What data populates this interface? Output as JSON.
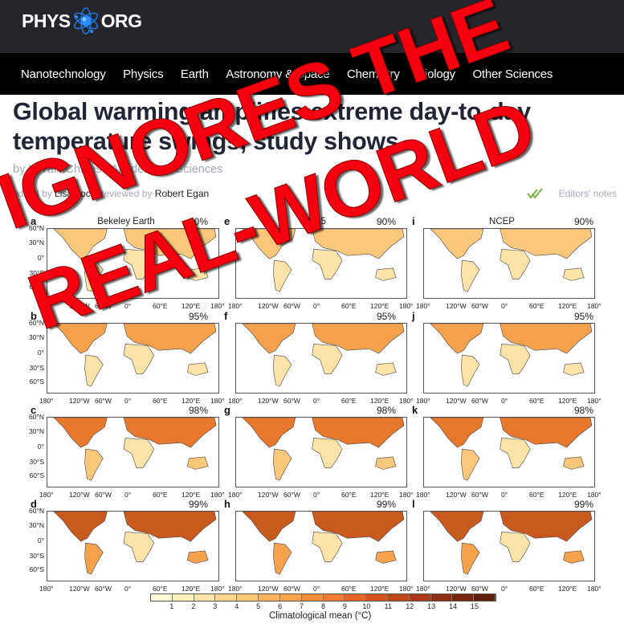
{
  "header": {
    "logo_left": "PHYS",
    "logo_right": "ORG",
    "logo_icon": "atom-icon"
  },
  "nav": {
    "items": [
      {
        "label": "Nanotechnology"
      },
      {
        "label": "Physics"
      },
      {
        "label": "Earth"
      },
      {
        "label": "Astronomy & Space"
      },
      {
        "label": "Chemistry"
      },
      {
        "label": "Biology"
      },
      {
        "label": "Other Sciences"
      }
    ]
  },
  "article": {
    "title": "Global warming amplifies extreme day-to-day temperature swings, study shows",
    "byline": "by Li Yali, Chinese Academy of Sciences",
    "edited_prefix": "edited by ",
    "editor": "Lisa Lock",
    "reviewed_prefix": ", reviewed by ",
    "reviewer": "Robert Egan",
    "editors_notes": "Editors' notes",
    "editors_notes_icon": "double-check-icon"
  },
  "overlay": {
    "line1": "IGNORES THE",
    "line2": "REAL-WORLD",
    "color": "#f5000f"
  },
  "figure": {
    "lat_labels": [
      "60°N",
      "30°N",
      "0°",
      "30°S",
      "60°S"
    ],
    "lon_labels": [
      "180°",
      "120°W",
      "60°W",
      "0°",
      "60°E",
      "120°E",
      "180°"
    ],
    "columns": [
      {
        "source": "Bekeley Earth"
      },
      {
        "source": "ERA5"
      },
      {
        "source": "NCEP"
      }
    ],
    "panels": [
      {
        "letter": "a",
        "pct": "90%",
        "source": "Bekeley Earth"
      },
      {
        "letter": "e",
        "pct": "90%",
        "source": "ERA5"
      },
      {
        "letter": "i",
        "pct": "90%",
        "source": "NCEP"
      },
      {
        "letter": "b",
        "pct": "95%"
      },
      {
        "letter": "f",
        "pct": "95%"
      },
      {
        "letter": "j",
        "pct": "95%"
      },
      {
        "letter": "c",
        "pct": "98%"
      },
      {
        "letter": "g",
        "pct": "98%"
      },
      {
        "letter": "k",
        "pct": "98%"
      },
      {
        "letter": "d",
        "pct": "99%"
      },
      {
        "letter": "h",
        "pct": "99%"
      },
      {
        "letter": "l",
        "pct": "99%"
      }
    ],
    "colorbar": {
      "ticks": [
        "1",
        "2",
        "3",
        "4",
        "5",
        "6",
        "7",
        "8",
        "9",
        "10",
        "11",
        "12",
        "13",
        "14",
        "15"
      ],
      "label": "Climatological mean (°C)",
      "colors": [
        "#fffbd6",
        "#fff1bd",
        "#fee6a6",
        "#fdd88c",
        "#fdc875",
        "#fcb55e",
        "#fba24c",
        "#f88f3d",
        "#f17c31",
        "#e46726",
        "#d2561e",
        "#bd4617",
        "#a73a14",
        "#8f2f11",
        "#78250e",
        "#621c0b"
      ]
    }
  }
}
